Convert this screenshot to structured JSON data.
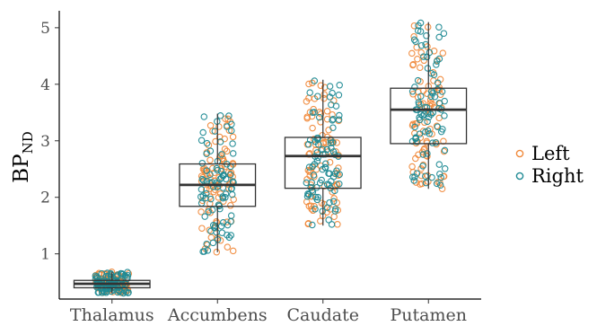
{
  "chart_data": {
    "type": "box",
    "title": "",
    "xlabel": "",
    "ylabel": "BP",
    "ylabel_subscript": "ND",
    "categories": [
      "Thalamus",
      "Accumbens",
      "Caudate",
      "Putamen"
    ],
    "yticks": [
      1,
      2,
      3,
      4,
      5
    ],
    "ylim": [
      0.2,
      5.3
    ],
    "grid": false,
    "legend_position": "right",
    "boxes": [
      {
        "category": "Thalamus",
        "q1": 0.4,
        "median": 0.47,
        "q3": 0.53,
        "whisker_low": 0.3,
        "whisker_high": 0.68
      },
      {
        "category": "Accumbens",
        "q1": 1.84,
        "median": 2.22,
        "q3": 2.59,
        "whisker_low": 1.03,
        "whisker_high": 3.48
      },
      {
        "category": "Caudate",
        "q1": 2.16,
        "median": 2.73,
        "q3": 3.06,
        "whisker_low": 1.5,
        "whisker_high": 4.08
      },
      {
        "category": "Putamen",
        "q1": 2.95,
        "median": 3.55,
        "q3": 3.93,
        "whisker_low": 2.15,
        "whisker_high": 5.1
      }
    ],
    "series": [
      {
        "name": "Left",
        "color": "#f08a3c"
      },
      {
        "name": "Right",
        "color": "#1f8a94"
      }
    ]
  }
}
